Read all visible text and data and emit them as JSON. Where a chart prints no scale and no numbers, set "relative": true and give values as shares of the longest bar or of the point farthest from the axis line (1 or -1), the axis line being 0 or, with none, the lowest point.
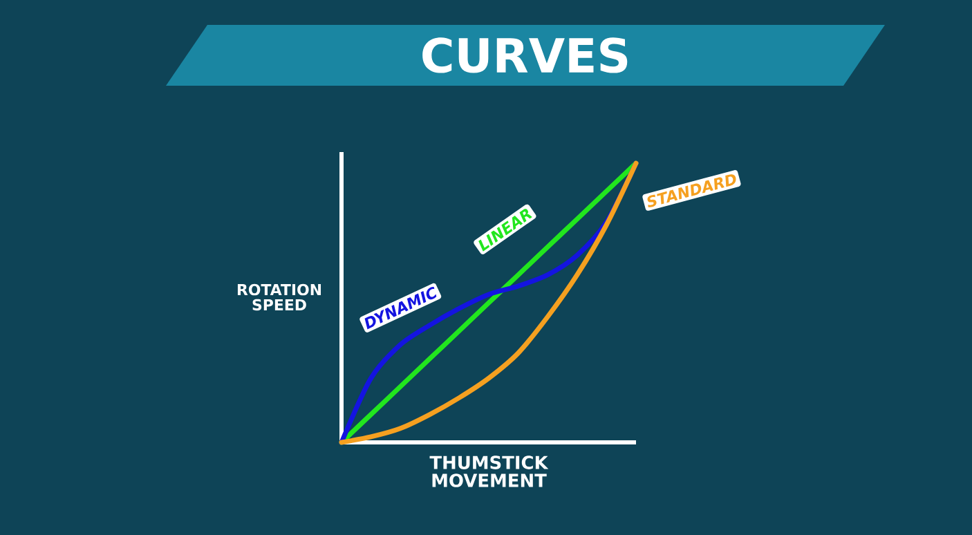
{
  "chart_data": {
    "type": "line",
    "title": "CURVES",
    "xlabel": "THUMSTICK MOVEMENT",
    "ylabel": "ROTATION SPEED",
    "relative": true,
    "marker": "none",
    "categories": [
      null,
      null,
      null,
      null,
      null,
      null,
      null,
      null,
      null,
      null,
      null
    ],
    "series": [
      {
        "name": "LINEAR",
        "color": "#22e61e",
        "values": [
          0,
          0.1,
          0.2,
          0.3,
          0.4,
          0.5,
          0.6,
          0.7,
          0.8,
          0.9,
          1
        ]
      },
      {
        "name": "DYNAMIC",
        "color": "#1414e0",
        "values": [
          0,
          0.23,
          0.35,
          0.42,
          0.48,
          0.53,
          0.56,
          0.6,
          0.67,
          0.79,
          1
        ]
      },
      {
        "name": "STANDARD",
        "color": "#f5a020",
        "values": [
          0,
          0.02,
          0.05,
          0.1,
          0.16,
          0.23,
          0.32,
          0.45,
          0.6,
          0.78,
          1
        ]
      }
    ]
  }
}
